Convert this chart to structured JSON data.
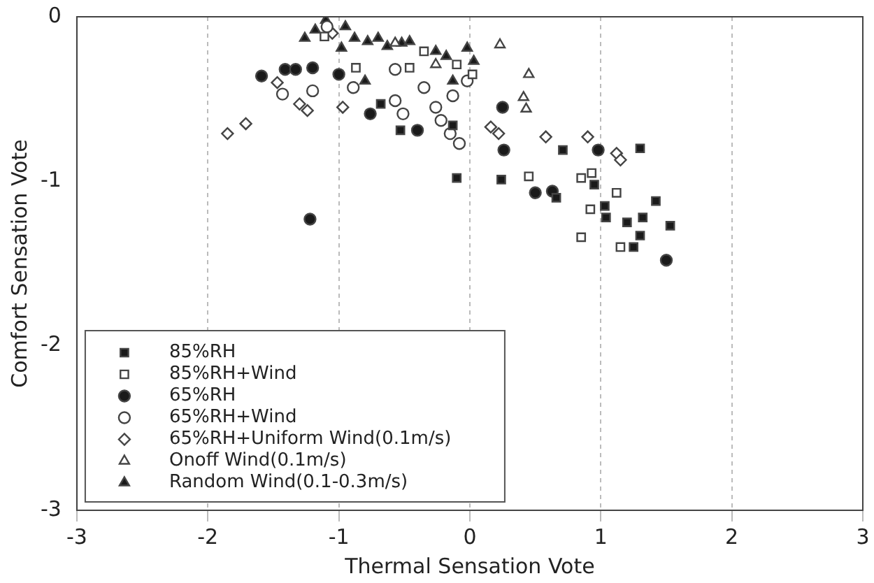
{
  "chart_data": {
    "type": "scatter",
    "xlabel": "Thermal Sensation Vote",
    "ylabel": "Comfort Sensation Vote",
    "xlim": [
      -3,
      3
    ],
    "ylim": [
      -3,
      0
    ],
    "xticks": [
      -3,
      -2,
      -1,
      0,
      1,
      2,
      3
    ],
    "yticks": [
      0,
      -1,
      -2,
      -3
    ],
    "grid": "x",
    "legend": "bottom left",
    "series": [
      {
        "name": "85%RH",
        "color": "#1a1a1a",
        "marker": "square",
        "x": [
          -0.68,
          -0.53,
          -0.13,
          -0.1,
          0.24,
          0.71,
          1.3,
          0.95,
          1.42,
          0.66,
          1.04,
          1.2,
          1.32,
          1.3,
          1.25,
          1.53,
          1.03
        ],
        "values": [
          -0.53,
          -0.69,
          -0.66,
          -0.98,
          -0.99,
          -0.81,
          -0.8,
          -1.02,
          -1.12,
          -1.1,
          -1.22,
          -1.25,
          -1.22,
          -1.33,
          -1.4,
          -1.27,
          -1.15
        ]
      },
      {
        "name": "85%RH+Wind",
        "color": "#ffffff",
        "marker": "square",
        "x": [
          0.45,
          0.85,
          0.93,
          1.12,
          0.92,
          0.85,
          1.15,
          -0.87,
          -0.46,
          -0.35,
          -0.1,
          0.02,
          -1.11
        ],
        "values": [
          -0.97,
          -0.98,
          -0.95,
          -1.07,
          -1.17,
          -1.34,
          -1.4,
          -0.31,
          -0.31,
          -0.21,
          -0.29,
          -0.35,
          -0.12
        ]
      },
      {
        "name": "65%RH",
        "color": "#1a1a1a",
        "marker": "circle",
        "x": [
          -1.59,
          -1.41,
          -1.33,
          -1.2,
          -1.0,
          -0.76,
          -0.4,
          0.26,
          0.98,
          0.5,
          0.63,
          1.5,
          -1.22,
          0.25
        ],
        "values": [
          -0.36,
          -0.32,
          -0.32,
          -0.31,
          -0.35,
          -0.59,
          -0.69,
          -0.81,
          -0.81,
          -1.07,
          -1.06,
          -1.48,
          -1.23,
          -0.55
        ]
      },
      {
        "name": "65%RH+Wind",
        "color": "#ffffff",
        "marker": "circle",
        "x": [
          -1.43,
          -1.2,
          -0.89,
          -0.57,
          -0.57,
          -0.51,
          -0.35,
          -0.26,
          -0.22,
          -0.13,
          -0.02,
          -0.15,
          -0.08,
          -1.09
        ],
        "values": [
          -0.47,
          -0.45,
          -0.43,
          -0.32,
          -0.51,
          -0.59,
          -0.43,
          -0.55,
          -0.63,
          -0.48,
          -0.39,
          -0.71,
          -0.77,
          -0.06
        ]
      },
      {
        "name": "65%RH+Uniform Wind(0.1m/s)",
        "color": "#ffffff",
        "marker": "diamond",
        "x": [
          -1.85,
          -1.71,
          -1.3,
          -1.24,
          -0.97,
          -1.47,
          0.16,
          0.22,
          0.58,
          0.9,
          1.12,
          1.15,
          -1.05
        ],
        "values": [
          -0.71,
          -0.65,
          -0.53,
          -0.57,
          -0.55,
          -0.4,
          -0.67,
          -0.71,
          -0.73,
          -0.73,
          -0.83,
          -0.87,
          -0.1
        ]
      },
      {
        "name": "Onoff Wind(0.1m/s)",
        "color": "#ffffff",
        "marker": "triangle",
        "x": [
          0.23,
          0.45,
          0.41,
          0.43,
          -0.26,
          -0.57
        ],
        "values": [
          -0.17,
          -0.35,
          -0.49,
          -0.56,
          -0.29,
          -0.16
        ]
      },
      {
        "name": "Random Wind(0.1-0.3m/s)",
        "color": "#1a1a1a",
        "marker": "triangle",
        "x": [
          -1.26,
          -1.18,
          -1.1,
          -0.95,
          -0.88,
          -0.78,
          -0.7,
          -0.63,
          -0.52,
          -0.46,
          -0.26,
          -0.18,
          -0.02,
          0.03,
          -0.98,
          -0.8,
          -0.13
        ],
        "values": [
          -0.13,
          -0.08,
          -0.02,
          -0.06,
          -0.13,
          -0.15,
          -0.13,
          -0.18,
          -0.16,
          -0.15,
          -0.21,
          -0.24,
          -0.19,
          -0.27,
          -0.19,
          -0.39,
          -0.39
        ]
      }
    ]
  }
}
